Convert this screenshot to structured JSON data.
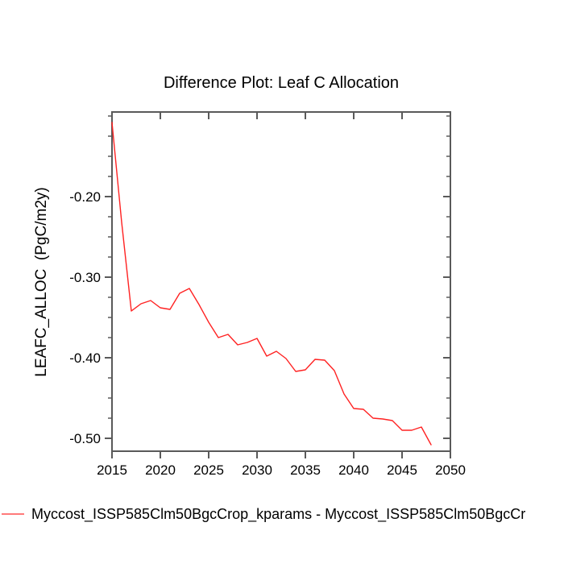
{
  "title": "Difference Plot: Leaf C Allocation",
  "y_axis_label": "LEAFC_ALLOC  (PgC/m2y)",
  "legend": {
    "label": "Myccost_ISSP585Clm50BgcCrop_kparams - Myccost_ISSP585Clm50BgcCr",
    "position": "bottom-left"
  },
  "colors": {
    "line": "#ff2222",
    "legend_line": "#ff7a7a",
    "axis": "#5a5a5a",
    "text": "#000000",
    "background": "#ffffff"
  },
  "chart_data": {
    "type": "line",
    "title": "Difference Plot: Leaf C Allocation",
    "xlabel": "",
    "ylabel": "LEAFC_ALLOC (PgC/m2y)",
    "xlim": [
      2015,
      2050
    ],
    "ylim": [
      -0.516,
      -0.095
    ],
    "x_ticks": [
      2015,
      2020,
      2025,
      2030,
      2035,
      2040,
      2045,
      2050
    ],
    "y_ticks": [
      -0.2,
      -0.3,
      -0.4,
      -0.5
    ],
    "y_tick_labels": [
      "-0.20",
      "-0.30",
      "-0.40",
      "-0.50"
    ],
    "y_minor_step": 0.025,
    "grid": false,
    "legend_position": "bottom-left",
    "x": [
      2015,
      2016,
      2017,
      2018,
      2019,
      2020,
      2021,
      2022,
      2023,
      2024,
      2025,
      2026,
      2027,
      2028,
      2029,
      2030,
      2031,
      2032,
      2033,
      2034,
      2035,
      2036,
      2037,
      2038,
      2039,
      2040,
      2041,
      2042,
      2043,
      2044,
      2045,
      2046,
      2047,
      2048
    ],
    "series": [
      {
        "name": "Myccost_ISSP585Clm50BgcCrop_kparams - Myccost_ISSP585Clm50BgcCr",
        "color": "#ff2222",
        "values": [
          -0.108,
          -0.232,
          -0.342,
          -0.333,
          -0.329,
          -0.338,
          -0.34,
          -0.32,
          -0.314,
          -0.334,
          -0.356,
          -0.375,
          -0.371,
          -0.384,
          -0.381,
          -0.376,
          -0.398,
          -0.392,
          -0.401,
          -0.417,
          -0.415,
          -0.402,
          -0.403,
          -0.416,
          -0.445,
          -0.463,
          -0.464,
          -0.475,
          -0.476,
          -0.478,
          -0.49,
          -0.49,
          -0.486,
          -0.508
        ]
      }
    ]
  }
}
